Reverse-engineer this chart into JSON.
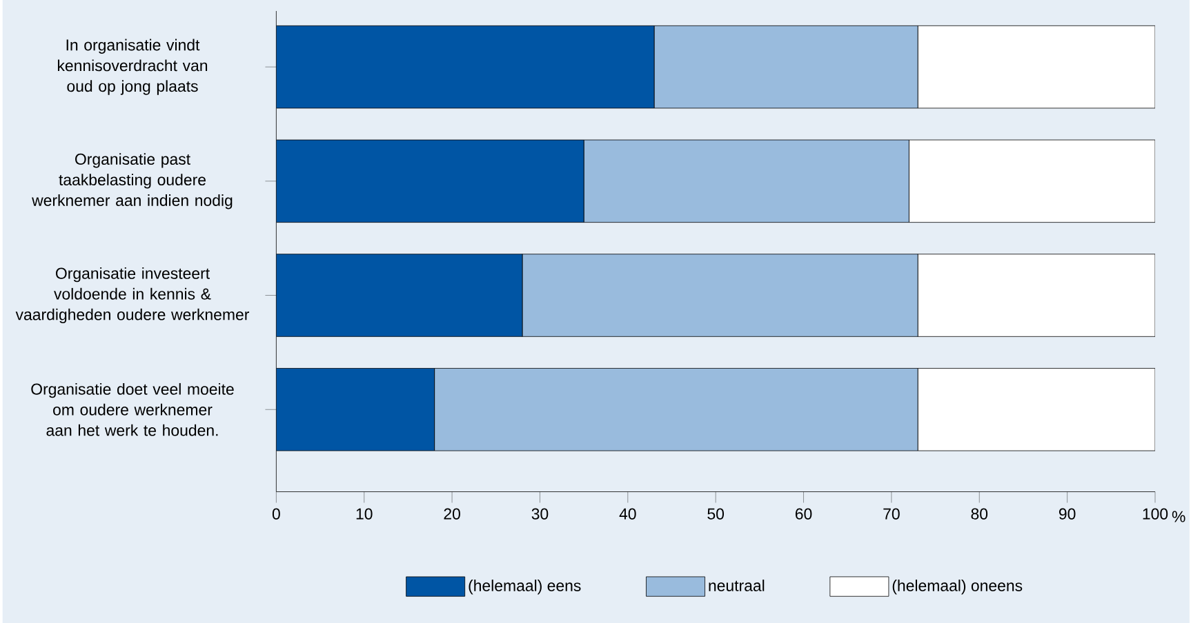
{
  "chart_data": {
    "type": "bar",
    "orientation": "horizontal",
    "stacked": true,
    "categories": [
      "In organisatie vindt kennisoverdracht van oud op jong plaats",
      "Organisatie past taakbelasting oudere werknemer aan indien nodig",
      "Organisatie investeert voldoende in kennis & vaardigheden oudere werknemer",
      "Organisatie doet veel moeite om oudere werknemer aan het werk te houden."
    ],
    "series": [
      {
        "name": "(helemaal) eens",
        "color": "#0055a4",
        "values": [
          43,
          35,
          28,
          18
        ]
      },
      {
        "name": "neutraal",
        "color": "#99bbdd",
        "values": [
          30,
          37,
          45,
          55
        ]
      },
      {
        "name": "(helemaal) oneens",
        "color": "#ffffff",
        "values": [
          27,
          28,
          27,
          27
        ]
      }
    ],
    "xlim": [
      0,
      100
    ],
    "xticks": [
      0,
      10,
      20,
      30,
      40,
      50,
      60,
      70,
      80,
      90,
      100
    ],
    "xlabel": "%",
    "legend": "bottom"
  }
}
